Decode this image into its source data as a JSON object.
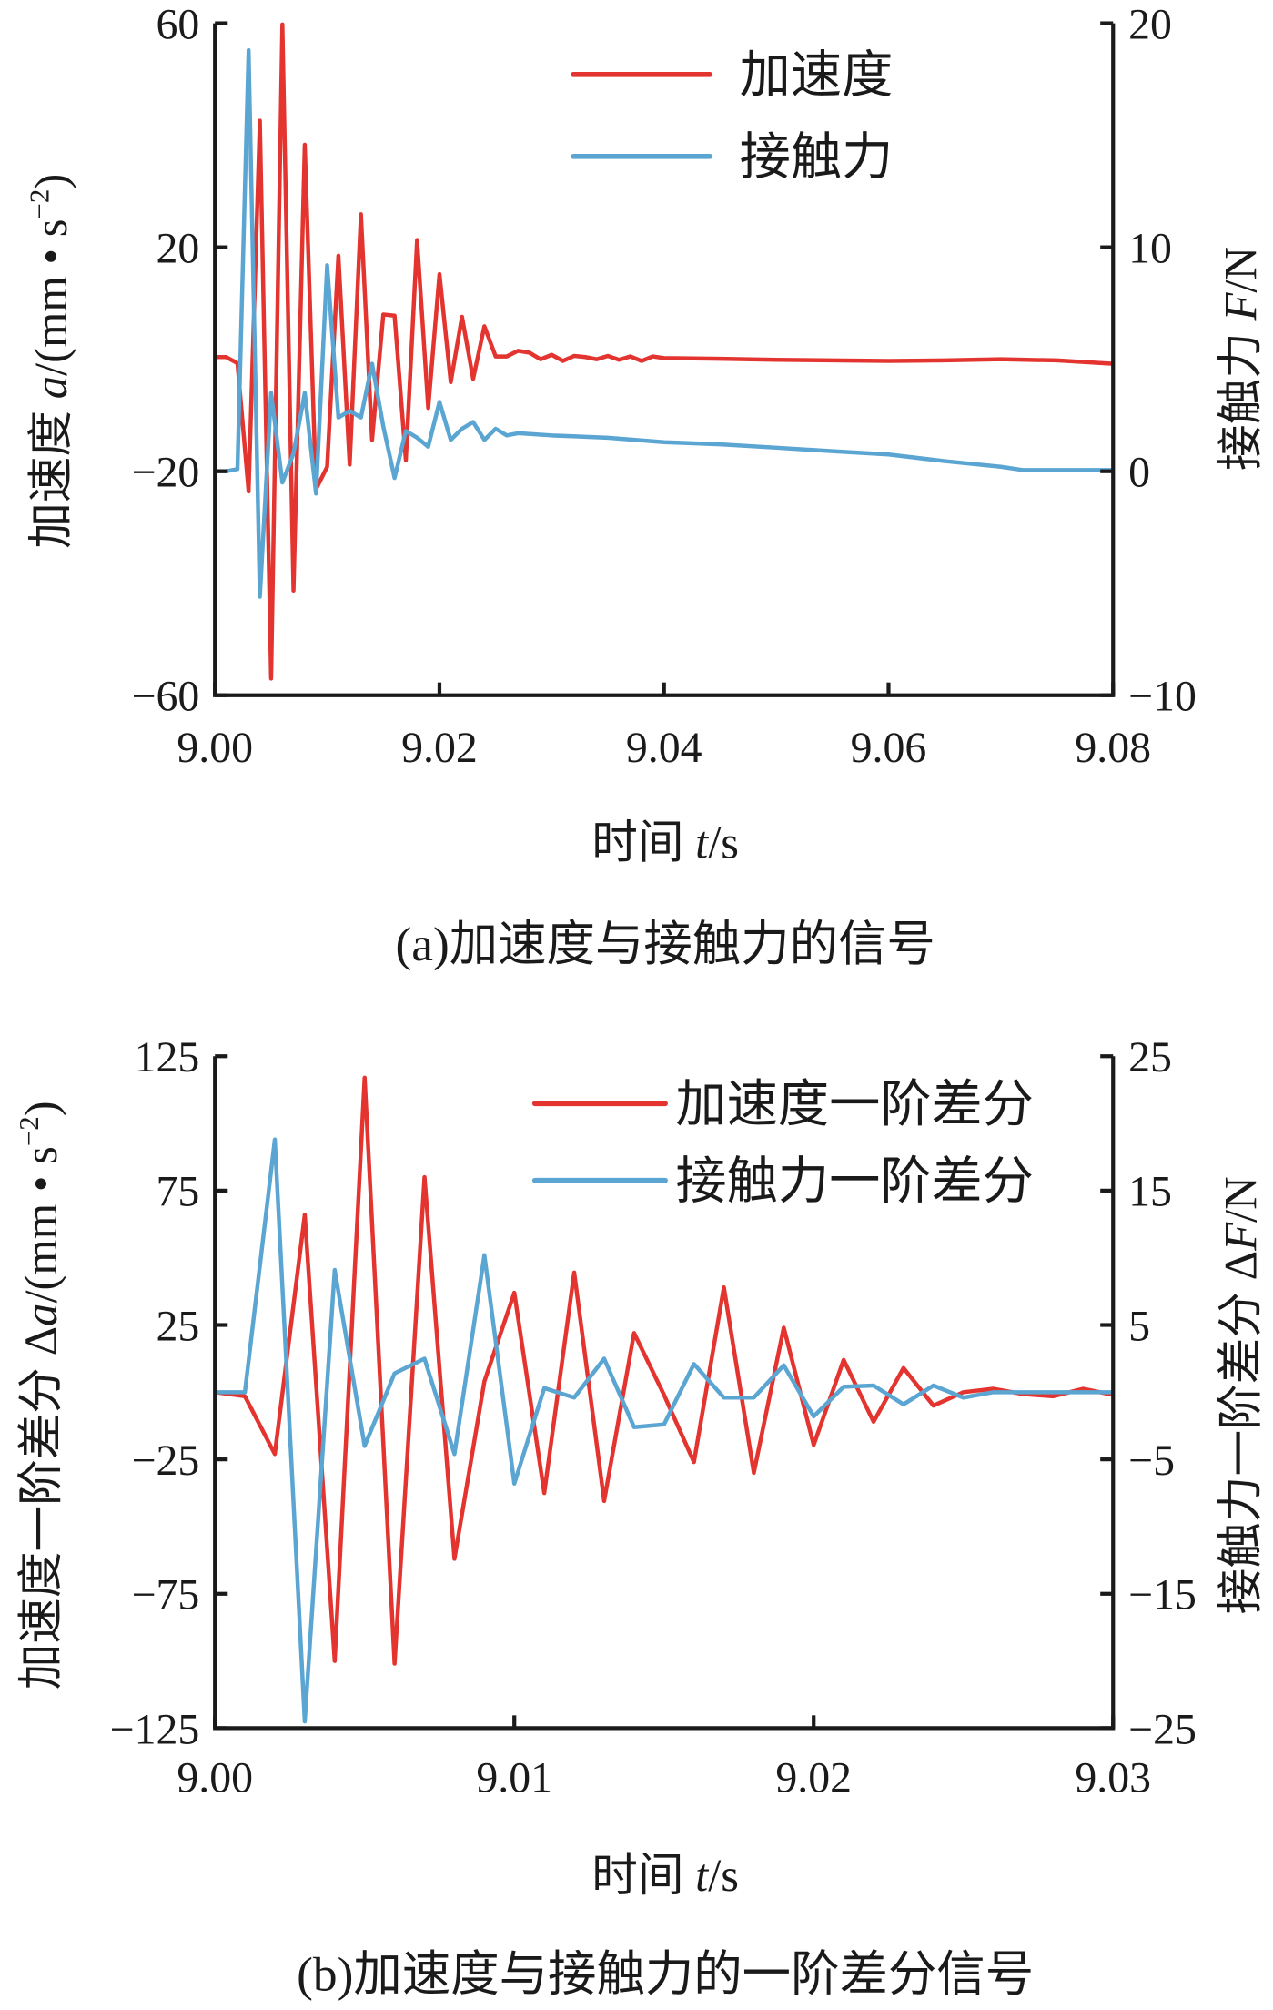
{
  "colors": {
    "accel": "#e3342f",
    "force": "#5aa5d2",
    "axis": "#1a1a1a"
  },
  "chart_data": [
    {
      "type": "line",
      "caption": "(a)加速度与接触力的信号",
      "xlabel": {
        "main": "时间 ",
        "var": "t",
        "unit": "/s"
      },
      "ylabel_left": {
        "main": "加速度 ",
        "var": "a",
        "unit": "/(mm • s",
        "sup": "−2",
        "close": ")"
      },
      "ylabel_right": {
        "main": "接触力 ",
        "var": "F",
        "unit": "/N"
      },
      "xlim": [
        9.0,
        9.08
      ],
      "ylim_left": [
        -60,
        60
      ],
      "ylim_right": [
        -10,
        20
      ],
      "xticks": [
        "9.00",
        "9.02",
        "9.04",
        "9.06",
        "9.08"
      ],
      "yticks_left": [
        "60",
        "20",
        "−20",
        "−60"
      ],
      "yticks_right": [
        "20",
        "10",
        "0",
        "−10"
      ],
      "legend_position": "top-right",
      "series": [
        {
          "name": "加速度",
          "axis": "left",
          "color_key": "accel",
          "x": [
            9.0,
            9.001,
            9.002,
            9.003,
            9.004,
            9.005,
            9.006,
            9.007,
            9.008,
            9.009,
            9.01,
            9.011,
            9.012,
            9.013,
            9.014,
            9.015,
            9.016,
            9.017,
            9.018,
            9.019,
            9.02,
            9.021,
            9.022,
            9.023,
            9.024,
            9.025,
            9.026,
            9.027,
            9.028,
            9.029,
            9.03,
            9.031,
            9.032,
            9.033,
            9.034,
            9.035,
            9.036,
            9.037,
            9.038,
            9.039,
            9.04,
            9.045,
            9.05,
            9.06,
            9.065,
            9.07,
            9.075,
            9.08
          ],
          "y": [
            0.4,
            0.4,
            -0.7,
            -23.6,
            42.6,
            -57,
            59.8,
            -41.3,
            38.3,
            -23.2,
            -19.2,
            18.5,
            -18.8,
            25.9,
            -14.4,
            8,
            7.8,
            -18,
            21.3,
            -8.7,
            15.2,
            -4.1,
            7.6,
            -3.5,
            5.9,
            0.5,
            0.5,
            1.5,
            1.2,
            0.0,
            0.8,
            -0.3,
            0.6,
            0.4,
            0.0,
            0.6,
            -0.1,
            0.5,
            -0.3,
            0.5,
            0.2,
            0.1,
            -0.1,
            -0.3,
            -0.2,
            0.0,
            -0.2,
            -0.8
          ]
        },
        {
          "name": "接触力",
          "axis": "right",
          "color_key": "force",
          "x": [
            9.0,
            9.001,
            9.002,
            9.003,
            9.004,
            9.005,
            9.006,
            9.007,
            9.008,
            9.009,
            9.01,
            9.011,
            9.012,
            9.013,
            9.014,
            9.015,
            9.016,
            9.017,
            9.018,
            9.019,
            9.02,
            9.021,
            9.022,
            9.023,
            9.024,
            9.025,
            9.026,
            9.027,
            9.03,
            9.035,
            9.04,
            9.045,
            9.05,
            9.055,
            9.06,
            9.065,
            9.07,
            9.072,
            9.08
          ],
          "y": [
            0,
            0,
            0.1,
            18.8,
            -5.6,
            3.5,
            -0.5,
            0.8,
            3.5,
            -1.0,
            9.2,
            2.4,
            2.7,
            2.4,
            4.8,
            2.0,
            -0.3,
            1.8,
            1.5,
            1.1,
            3.1,
            1.4,
            1.9,
            2.2,
            1.4,
            1.9,
            1.6,
            1.7,
            1.6,
            1.5,
            1.3,
            1.2,
            1.05,
            0.9,
            0.75,
            0.45,
            0.2,
            0.05,
            0.05
          ]
        }
      ]
    },
    {
      "type": "line",
      "caption": "(b)加速度与接触力的一阶差分信号",
      "xlabel": {
        "main": "时间 ",
        "var": "t",
        "unit": "/s"
      },
      "ylabel_left": {
        "main": "加速度一阶差分 Δ",
        "var": "a",
        "unit": "/(mm • s",
        "sup": "−2",
        "close": ")"
      },
      "ylabel_right": {
        "main": "接触力一阶差分 Δ",
        "var": "F",
        "unit": "/N"
      },
      "xlim": [
        9.0,
        9.03
      ],
      "ylim_left": [
        -125,
        125
      ],
      "ylim_right": [
        -25,
        25
      ],
      "xticks": [
        "9.00",
        "9.01",
        "9.02",
        "9.03"
      ],
      "yticks_left": [
        "125",
        "75",
        "25",
        "−25",
        "−75",
        "−125"
      ],
      "yticks_right": [
        "25",
        "15",
        "5",
        "−5",
        "−15",
        "−25"
      ],
      "legend_position": "top-right",
      "series": [
        {
          "name": "加速度一阶差分",
          "axis": "left",
          "color_key": "accel",
          "x": [
            9.0,
            9.001,
            9.002,
            9.003,
            9.004,
            9.005,
            9.006,
            9.007,
            9.008,
            9.009,
            9.01,
            9.011,
            9.012,
            9.013,
            9.014,
            9.015,
            9.016,
            9.017,
            9.018,
            9.019,
            9.02,
            9.021,
            9.022,
            9.023,
            9.024,
            9.025,
            9.026,
            9.027,
            9.028,
            9.029,
            9.03
          ],
          "y": [
            0,
            -1.5,
            -23,
            66,
            -100,
            117,
            -101,
            80,
            -62,
            4,
            37,
            -37.5,
            44.5,
            -40.5,
            22,
            -1,
            -26,
            39,
            -30,
            24,
            -19.6,
            12,
            -11,
            9,
            -5,
            0,
            1.3,
            -0.7,
            -1.5,
            1.3,
            -1
          ]
        },
        {
          "name": "接触力一阶差分",
          "axis": "right",
          "color_key": "force",
          "x": [
            9.0,
            9.001,
            9.002,
            9.003,
            9.004,
            9.005,
            9.006,
            9.007,
            9.008,
            9.009,
            9.01,
            9.011,
            9.012,
            9.013,
            9.014,
            9.015,
            9.016,
            9.017,
            9.018,
            9.019,
            9.02,
            9.021,
            9.022,
            9.023,
            9.024,
            9.025,
            9.026,
            9.027,
            9.028,
            9.029,
            9.03
          ],
          "y": [
            0,
            0,
            18.8,
            -24.5,
            9.1,
            -4,
            1.4,
            2.5,
            -4.6,
            10.2,
            -6.8,
            0.3,
            -0.4,
            2.5,
            -2.6,
            -2.4,
            2.1,
            -0.4,
            -0.4,
            2,
            -1.8,
            0.4,
            0.5,
            -0.9,
            0.5,
            -0.4,
            0,
            0,
            0,
            0,
            0
          ]
        }
      ]
    }
  ]
}
